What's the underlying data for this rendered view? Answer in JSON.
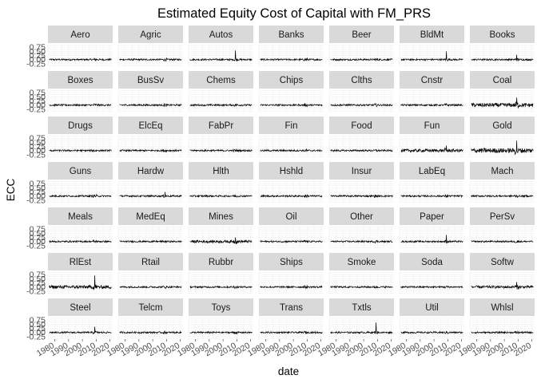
{
  "chart_data": {
    "type": "line",
    "title": "Estimated Equity Cost of Capital with FM_PRS",
    "xlabel": "date",
    "ylabel": "ECC",
    "facet_layout": "7x7 grid",
    "grid": true,
    "x_range": [
      1975,
      2022
    ],
    "ylim": [
      -0.4,
      0.9
    ],
    "x_ticks": [
      "1980",
      "1990",
      "2000",
      "2010",
      "2020"
    ],
    "y_ticks": [
      "-0.25",
      "0.00",
      "0.25",
      "0.50",
      "0.75"
    ],
    "facets": [
      {
        "name": "Aero"
      },
      {
        "name": "Agric"
      },
      {
        "name": "Autos"
      },
      {
        "name": "Banks"
      },
      {
        "name": "Beer"
      },
      {
        "name": "BldMt"
      },
      {
        "name": "Books"
      },
      {
        "name": "Boxes"
      },
      {
        "name": "BusSv"
      },
      {
        "name": "Chems"
      },
      {
        "name": "Chips"
      },
      {
        "name": "Clths"
      },
      {
        "name": "Cnstr"
      },
      {
        "name": "Coal"
      },
      {
        "name": "Drugs"
      },
      {
        "name": "ElcEq"
      },
      {
        "name": "FabPr"
      },
      {
        "name": "Fin"
      },
      {
        "name": "Food"
      },
      {
        "name": "Fun"
      },
      {
        "name": "Gold"
      },
      {
        "name": "Guns"
      },
      {
        "name": "Hardw"
      },
      {
        "name": "Hlth"
      },
      {
        "name": "Hshld"
      },
      {
        "name": "Insur"
      },
      {
        "name": "LabEq"
      },
      {
        "name": "Mach"
      },
      {
        "name": "Meals"
      },
      {
        "name": "MedEq"
      },
      {
        "name": "Mines"
      },
      {
        "name": "Oil"
      },
      {
        "name": "Other"
      },
      {
        "name": "Paper"
      },
      {
        "name": "PerSv"
      },
      {
        "name": "RlEst"
      },
      {
        "name": "Rtail"
      },
      {
        "name": "Rubbr"
      },
      {
        "name": "Ships"
      },
      {
        "name": "Smoke"
      },
      {
        "name": "Soda"
      },
      {
        "name": "Softw"
      },
      {
        "name": "Steel"
      },
      {
        "name": "Telcm"
      },
      {
        "name": "Toys"
      },
      {
        "name": "Trans"
      },
      {
        "name": "Txtls"
      },
      {
        "name": "Util"
      },
      {
        "name": "Whlsl"
      }
    ],
    "series_values": "monthly ECC series per industry, roughly 1976-2021, oscillating near 0.0 with amplitude about 0.05-0.3; spikes visible in Autos, BldMt, Coal, Gold, RlEst, Txtls, Paper around 2008-2010"
  }
}
